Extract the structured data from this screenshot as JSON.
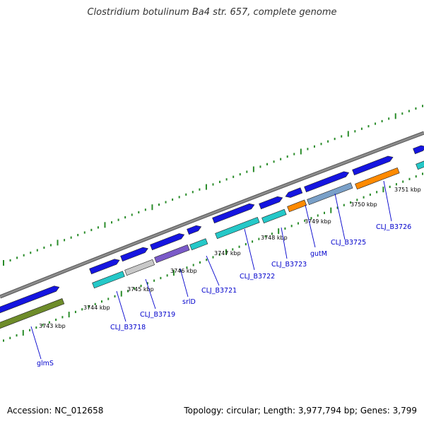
{
  "title": "Clostridium botulinum Ba4 str. 657, complete genome",
  "footer": {
    "accession": "Accession: NC_012658",
    "info": "Topology: circular; Length: 3,977,794 bp; Genes: 3,799"
  },
  "colors": {
    "backbone": "#8c8c8c",
    "cds": "#1515e0",
    "rrna_teal": "#25c8c8",
    "pseudo_grey": "#c8c8c8",
    "purple": "#7a5ac8",
    "orange": "#ff8a00",
    "steel": "#7aa0c8",
    "olive": "#6e8c2a",
    "tick": "#2a8c2a",
    "label": "#0000cc"
  },
  "kbp_labels": [
    "3743 kbp",
    "3744 kbp",
    "3745 kbp",
    "3746 kbp",
    "3747 kbp",
    "3748 kbp",
    "3749 kbp",
    "3750 kbp",
    "3751 kbp"
  ],
  "gene_labels": [
    "glmS",
    "CLJ_B3718",
    "CLJ_B3719",
    "srlD",
    "CLJ_B3721",
    "CLJ_B3722",
    "CLJ_B3723",
    "gutM",
    "CLJ_B3725",
    "CLJ_B3726"
  ]
}
